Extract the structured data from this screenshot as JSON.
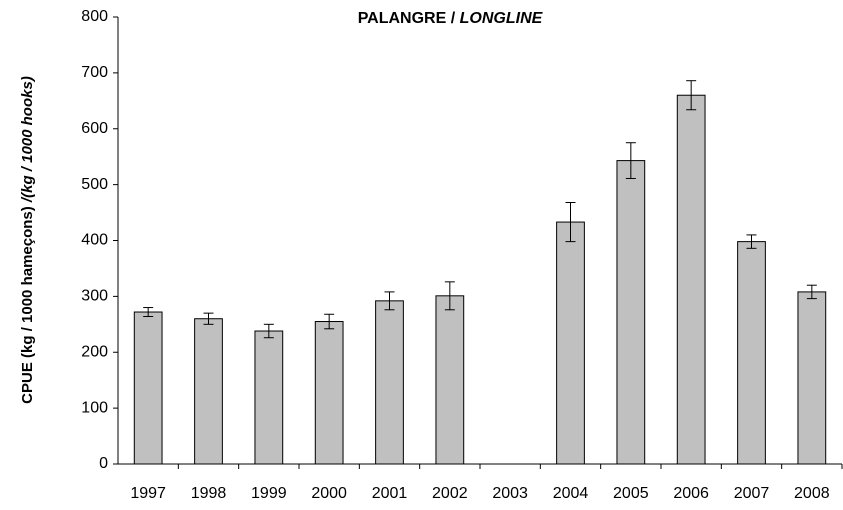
{
  "chart_data": {
    "type": "bar",
    "title": {
      "plain": "PALANGRE /",
      "italic": "LONGLINE"
    },
    "y_label": {
      "plain": "CPUE (kg / 1000 hameçons)",
      "italic": "/(kg / 1000 hooks)"
    },
    "categories": [
      "1997",
      "1998",
      "1999",
      "2000",
      "2001",
      "2002",
      "2003",
      "2004",
      "2005",
      "2006",
      "2007",
      "2008"
    ],
    "values": [
      272,
      260,
      238,
      255,
      292,
      301,
      null,
      433,
      543,
      660,
      398,
      308
    ],
    "errors": [
      8,
      10,
      12,
      13,
      16,
      25,
      null,
      35,
      32,
      26,
      12,
      12
    ],
    "color": "#c0c0c0",
    "ylim": [
      0,
      800
    ],
    "yticks": [
      0,
      100,
      200,
      300,
      400,
      500,
      600,
      700,
      800
    ],
    "grid": false
  }
}
